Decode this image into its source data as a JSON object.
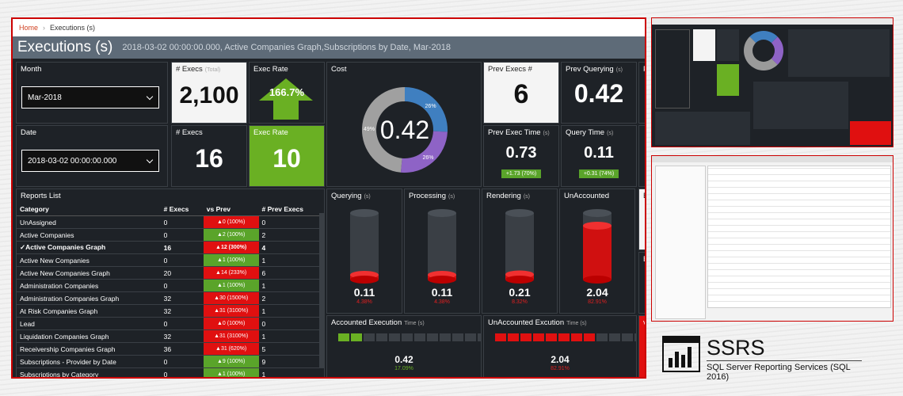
{
  "breadcrumb": {
    "home": "Home",
    "current": "Executions (s)"
  },
  "title": "Executions (s)",
  "subtitle": "2018-03-02 00:00:00.000, Active Companies Graph,Subscriptions by Date, Mar-2018",
  "filters": {
    "month_label": "Month",
    "month_value": "Mar-2018",
    "date_label": "Date",
    "date_value": "2018-03-02 00:00:00.000"
  },
  "kpis": {
    "execs_total_label": "# Execs",
    "execs_total_sub": "(Total)",
    "execs_total_value": "2,100",
    "exec_rate_label": "Exec Rate",
    "exec_rate_total_value": "166.7%",
    "execs_label": "# Execs",
    "execs_value": "16",
    "exec_rate2_label": "Exec Rate",
    "exec_rate2_value": "10",
    "cost_label": "Cost",
    "cost_value": "0.42",
    "cost_slices": [
      {
        "label": "26%",
        "value": 26,
        "color": "#3f7fc0"
      },
      {
        "label": "26%",
        "value": 26,
        "color": "#8e63c6"
      },
      {
        "label": "49%",
        "value": 49,
        "color": "#a0a0a0"
      }
    ],
    "prev_execs_label": "Prev Execs #",
    "prev_execs_value": "6",
    "prev_querying_label": "Prev Querying",
    "prev_querying_sub": "(s)",
    "prev_querying_value": "0.42",
    "prev_exec_time_label": "Prev Exec Time",
    "prev_exec_time_sub": "(s)",
    "prev_exec_time_value": "0.73",
    "prev_exec_time_delta": "+1.73 (70%)",
    "query_time_label": "Query Time",
    "query_time_sub": "(s)",
    "query_time_value": "0.11",
    "query_time_delta": "+0.31 (74%)",
    "pr_cut": "Pr"
  },
  "reports": {
    "title": "Reports List",
    "headers": [
      "Category",
      "# Execs",
      "vs Prev",
      "# Prev Execs"
    ],
    "rows": [
      {
        "category": "UnAssigned",
        "execs": "0",
        "vs": "▲0 (100%)",
        "vsclass": "red",
        "prev": "0"
      },
      {
        "category": "Active Companies",
        "execs": "0",
        "vs": "▲2 (100%)",
        "vsclass": "grn",
        "prev": "2"
      },
      {
        "category": "✓Active Companies Graph",
        "execs": "16",
        "vs": "▲12 (300%)",
        "vsclass": "red",
        "prev": "4",
        "sel": true
      },
      {
        "category": "Active New Companies",
        "execs": "0",
        "vs": "▲1 (100%)",
        "vsclass": "grn",
        "prev": "1"
      },
      {
        "category": "Active New Companies Graph",
        "execs": "20",
        "vs": "▲14 (233%)",
        "vsclass": "red",
        "prev": "6"
      },
      {
        "category": "Administration Companies",
        "execs": "0",
        "vs": "▲1 (100%)",
        "vsclass": "grn",
        "prev": "1"
      },
      {
        "category": "Administration Companies Graph",
        "execs": "32",
        "vs": "▲30 (1500%)",
        "vsclass": "red",
        "prev": "2"
      },
      {
        "category": "At Risk Companies Graph",
        "execs": "32",
        "vs": "▲31 (3100%)",
        "vsclass": "red",
        "prev": "1"
      },
      {
        "category": "Lead",
        "execs": "0",
        "vs": "▲0 (100%)",
        "vsclass": "red",
        "prev": "0"
      },
      {
        "category": "Liquidation Companies Graph",
        "execs": "32",
        "vs": "▲31 (3100%)",
        "vsclass": "red",
        "prev": "1"
      },
      {
        "category": "Receivership Companies Graph",
        "execs": "36",
        "vs": "▲31 (620%)",
        "vsclass": "red",
        "prev": "5"
      },
      {
        "category": "Subscriptions - Provider by Date",
        "execs": "0",
        "vs": "▲9 (100%)",
        "vsclass": "grn",
        "prev": "9"
      },
      {
        "category": "Subscriptions by Category",
        "execs": "0",
        "vs": "▲1 (100%)",
        "vsclass": "grn",
        "prev": "1"
      }
    ]
  },
  "gauges": [
    {
      "label": "Querying",
      "sub": "(s)",
      "value": "0.11",
      "pct": "4.38%",
      "level": 0.05
    },
    {
      "label": "Processing",
      "sub": "(s)",
      "value": "0.11",
      "pct": "4.38%",
      "level": 0.05
    },
    {
      "label": "Rendering",
      "sub": "(s)",
      "value": "0.21",
      "pct": "8.32%",
      "level": 0.08
    },
    {
      "label": "UnAccounted",
      "sub": "",
      "value": "2.04",
      "pct": "82.91%",
      "level": 0.83
    }
  ],
  "accounted": {
    "label": "Accounted Execution",
    "sub": "Time (s)",
    "value": "0.42",
    "pct": "17.09%",
    "filled": 2,
    "color": "#6ab023"
  },
  "unaccounted": {
    "label": "UnAccounted Excution",
    "sub": "Time (s)",
    "value": "2.04",
    "pct": "82.91%",
    "filled": 8,
    "color": "#e01010"
  },
  "edge_cut": {
    "e1": "E",
    "e2": "Ex",
    "e3": "vs"
  },
  "logo": {
    "title": "SSRS",
    "subtitle": "SQL Server Reporting Services (SQL 2016)"
  }
}
